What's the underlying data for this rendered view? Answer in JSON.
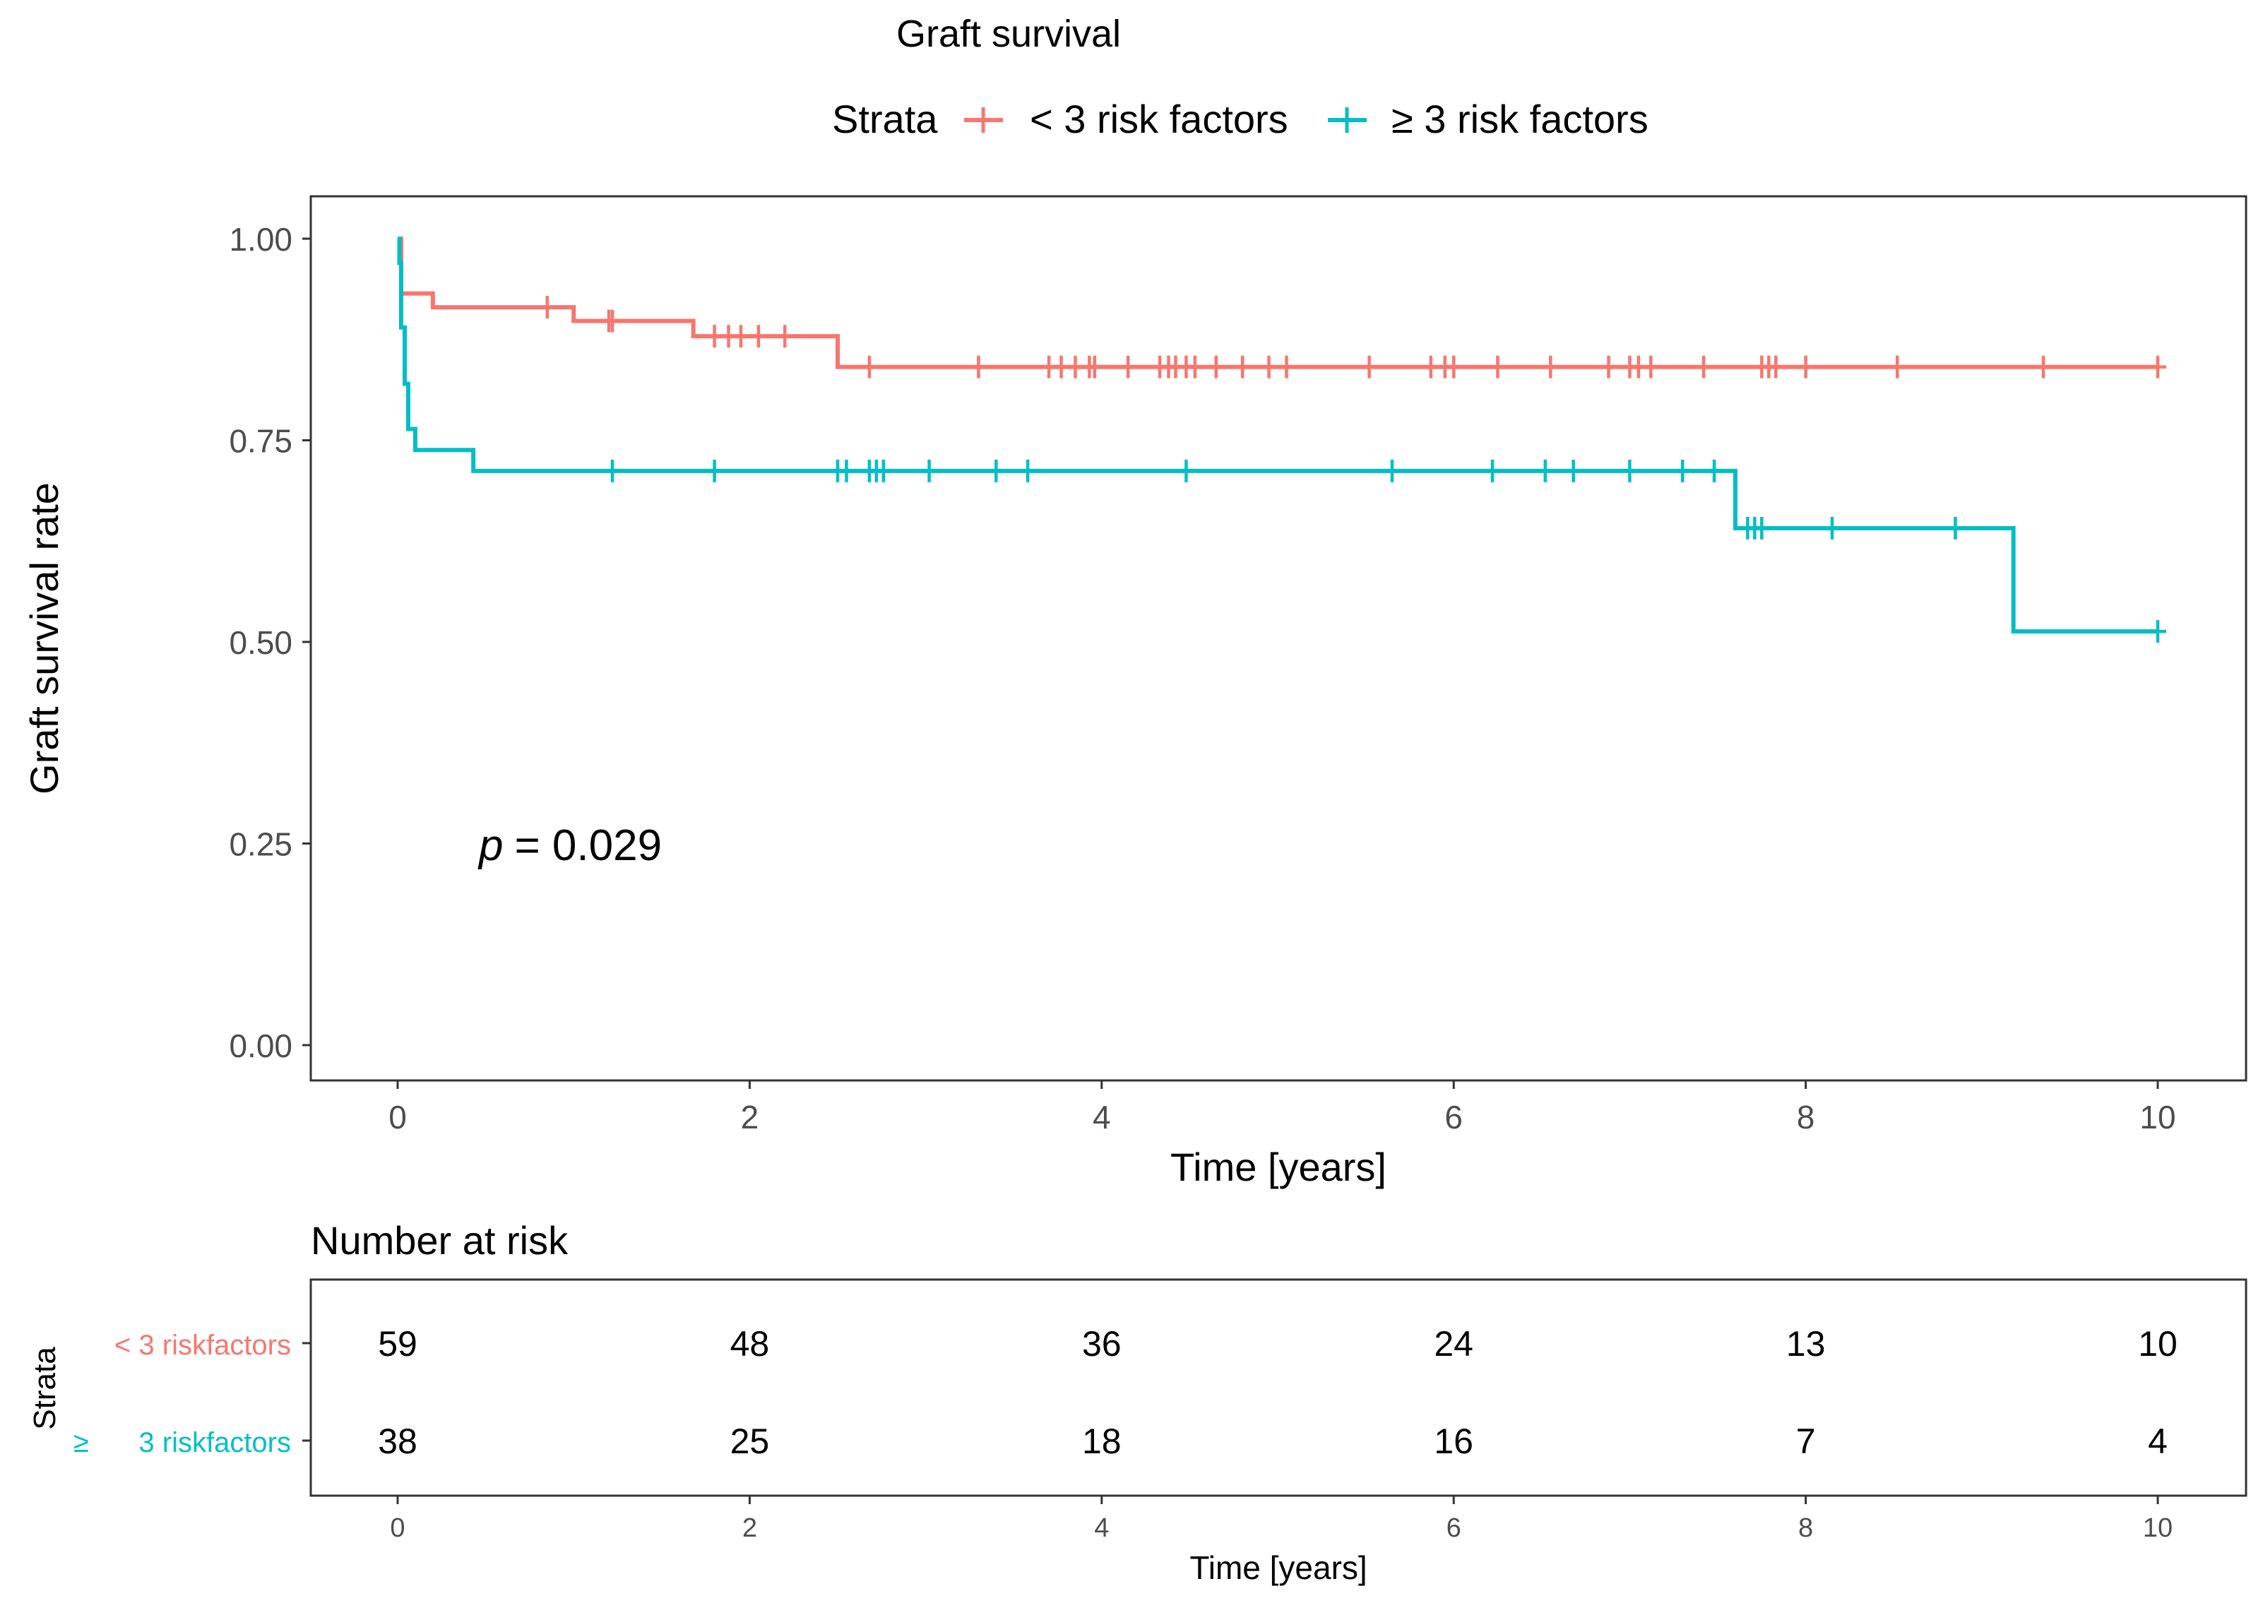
{
  "chart_data": {
    "type": "line",
    "subtype": "kaplan-meier",
    "title": "Graft survival",
    "legend": {
      "title": "Strata",
      "entries": [
        "< 3 risk factors",
        "≥ 3 risk factors"
      ],
      "placement": "top"
    },
    "xlabel": "Time [years]",
    "ylabel": "Graft survival rate",
    "xlim": [
      0,
      10
    ],
    "ylim": [
      0,
      1
    ],
    "x_ticks": [
      "0",
      "2",
      "4",
      "6",
      "8",
      "10"
    ],
    "y_ticks": [
      "0.00",
      "0.25",
      "0.50",
      "0.75",
      "1.00"
    ],
    "grid": false,
    "annotation": {
      "p_label": "p",
      "p_value": "= 0.029"
    },
    "series": [
      {
        "name": "< 3 risk factors",
        "color": "#F8766D",
        "steps": [
          [
            0,
            1.0
          ],
          [
            0.02,
            0.932
          ],
          [
            0.2,
            0.915
          ],
          [
            1.0,
            0.898
          ],
          [
            1.68,
            0.879
          ],
          [
            2.5,
            0.841
          ],
          [
            10,
            0.841
          ]
        ],
        "censor_times": [
          0.85,
          1.2,
          1.22,
          1.8,
          1.88,
          1.95,
          2.05,
          2.2,
          2.68,
          3.3,
          3.7,
          3.77,
          3.85,
          3.93,
          3.96,
          4.15,
          4.33,
          4.38,
          4.42,
          4.48,
          4.53,
          4.65,
          4.8,
          4.95,
          5.05,
          5.52,
          5.87,
          5.95,
          6.0,
          6.25,
          6.55,
          6.88,
          7.0,
          7.05,
          7.12,
          7.42,
          7.75,
          7.79,
          7.83,
          8.0,
          8.52,
          9.35,
          10.0
        ]
      },
      {
        "name": "≥ 3 risk factors",
        "color": "#00BFC4",
        "steps": [
          [
            0,
            1.0
          ],
          [
            0.01,
            0.97
          ],
          [
            0.02,
            0.89
          ],
          [
            0.04,
            0.82
          ],
          [
            0.06,
            0.764
          ],
          [
            0.1,
            0.738
          ],
          [
            0.43,
            0.712
          ],
          [
            7.6,
            0.641
          ],
          [
            9.18,
            0.513
          ],
          [
            10,
            0.513
          ]
        ],
        "censor_times": [
          1.22,
          1.8,
          2.5,
          2.55,
          2.68,
          2.72,
          2.76,
          3.02,
          3.4,
          3.58,
          4.48,
          5.65,
          6.22,
          6.52,
          6.68,
          7.0,
          7.3,
          7.48,
          7.67,
          7.71,
          7.75,
          8.15,
          8.85,
          10.0
        ]
      }
    ]
  },
  "risk_table": {
    "title": "Number at risk",
    "ylabel": "Strata",
    "xlabel": "Time [years]",
    "times": [
      "0",
      "2",
      "4",
      "6",
      "8",
      "10"
    ],
    "rows": [
      {
        "label": "< 3 riskfactors",
        "color": "#F8766D",
        "counts": [
          "59",
          "48",
          "36",
          "24",
          "13",
          "10"
        ]
      },
      {
        "label_prefix": "≥",
        "label": "3 riskfactors",
        "color": "#00BFC4",
        "counts": [
          "38",
          "25",
          "18",
          "16",
          "7",
          "4"
        ]
      }
    ]
  }
}
